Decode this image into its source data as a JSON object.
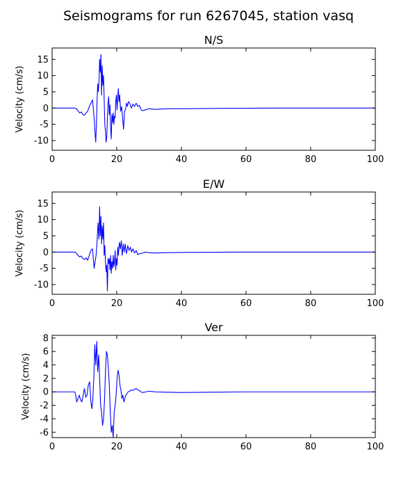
{
  "figure": {
    "suptitle": "Seismograms for run 6267045, station vasq"
  },
  "chart_data": [
    {
      "type": "line",
      "title": "N/S",
      "xlabel": "",
      "ylabel": "Velocity (cm/s)",
      "xlim": [
        0,
        100
      ],
      "ylim": [
        -13,
        18.5
      ],
      "xticks": [
        0,
        20,
        40,
        60,
        80,
        100
      ],
      "yticks": [
        -10,
        -5,
        0,
        5,
        10,
        15
      ],
      "grid": false,
      "color": "#0000ff",
      "series": [
        {
          "x": [
            0,
            7,
            7.5,
            8,
            8.5,
            9,
            9.5,
            10,
            10.5,
            11,
            11.5,
            12,
            12.5,
            13,
            13.3,
            13.5,
            13.7,
            13.9,
            14.1,
            14.3,
            14.5,
            14.7,
            14.9,
            15.1,
            15.3,
            15.5,
            15.7,
            15.9,
            16.1,
            16.3,
            16.5,
            16.7,
            16.9,
            17.1,
            17.3,
            17.5,
            17.7,
            17.9,
            18.1,
            18.3,
            18.5,
            18.7,
            18.9,
            19.1,
            19.3,
            19.5,
            19.7,
            19.9,
            20.1,
            20.3,
            20.5,
            20.7,
            20.9,
            21.2,
            21.5,
            21.8,
            22.1,
            22.4,
            22.7,
            23,
            23.3,
            23.6,
            24,
            24.5,
            25,
            25.5,
            26,
            26.5,
            27,
            27.5,
            28,
            29,
            30,
            32,
            34,
            36,
            40,
            50,
            60,
            70,
            80,
            90,
            100
          ],
          "y": [
            0,
            0,
            -0.2,
            -0.8,
            -1.5,
            -1.2,
            -2.0,
            -2.2,
            -1.5,
            -1.0,
            0.5,
            1.5,
            2.5,
            -3.0,
            -8.0,
            -10.5,
            -5.0,
            2.0,
            7.5,
            5.0,
            8.0,
            15.0,
            11.0,
            16.5,
            4.0,
            13.0,
            7.0,
            10.0,
            3.0,
            -5.0,
            -7.0,
            -10.5,
            -9.0,
            -3.5,
            1.5,
            3.5,
            -2.0,
            1.0,
            -6.0,
            -9.5,
            -2.0,
            -4.5,
            -1.5,
            -5.0,
            -2.5,
            -3.0,
            2.0,
            4.0,
            -0.5,
            3.5,
            6.0,
            2.0,
            4.0,
            -1.0,
            0.5,
            -3.0,
            -6.5,
            -1.0,
            -0.5,
            1.5,
            0.5,
            2.0,
            1.5,
            0.0,
            1.2,
            0.5,
            1.5,
            0.5,
            0.8,
            -0.5,
            -0.8,
            -0.5,
            -0.2,
            -0.4,
            -0.3,
            -0.2,
            -0.2,
            -0.1,
            -0.05,
            0,
            0,
            0,
            0
          ]
        }
      ]
    },
    {
      "type": "line",
      "title": "E/W",
      "xlabel": "",
      "ylabel": "Velocity (cm/s)",
      "xlim": [
        0,
        100
      ],
      "ylim": [
        -13,
        18.5
      ],
      "xticks": [
        0,
        20,
        40,
        60,
        80,
        100
      ],
      "yticks": [
        -10,
        -5,
        0,
        5,
        10,
        15
      ],
      "grid": false,
      "color": "#0000ff",
      "series": [
        {
          "x": [
            0,
            7,
            7.5,
            8,
            8.5,
            9,
            9.5,
            10,
            10.5,
            11,
            11.5,
            12,
            12.5,
            13,
            13.3,
            13.6,
            13.9,
            14.2,
            14.5,
            14.7,
            14.9,
            15.1,
            15.3,
            15.5,
            15.7,
            15.9,
            16.1,
            16.3,
            16.5,
            16.7,
            16.9,
            17.1,
            17.3,
            17.5,
            17.7,
            17.9,
            18.1,
            18.3,
            18.5,
            18.7,
            18.9,
            19.1,
            19.3,
            19.5,
            19.7,
            19.9,
            20.1,
            20.3,
            20.5,
            20.8,
            21.1,
            21.4,
            21.7,
            22,
            22.3,
            22.6,
            23,
            23.4,
            23.8,
            24.2,
            24.6,
            25,
            25.5,
            26,
            26.5,
            27,
            28,
            29,
            30,
            32,
            34,
            40,
            50,
            60,
            70,
            80,
            90,
            100
          ],
          "y": [
            0,
            0,
            -0.3,
            -1.0,
            -1.5,
            -1.2,
            -2.0,
            -2.3,
            -1.8,
            -2.5,
            -1.0,
            0.5,
            1.0,
            -5.0,
            -3.0,
            -1.0,
            3.0,
            9.0,
            4.0,
            14.0,
            5.0,
            11.0,
            2.5,
            8.0,
            4.0,
            9.0,
            -1.0,
            2.0,
            -3.0,
            -6.0,
            -4.0,
            -12.0,
            -2.0,
            -3.5,
            -2.0,
            -5.5,
            -1.0,
            -6.5,
            -3.0,
            -5.0,
            -1.0,
            -4.5,
            -3.0,
            0.5,
            -5.5,
            -2.0,
            -4.0,
            1.5,
            -1.0,
            3.0,
            1.0,
            3.5,
            -1.0,
            2.5,
            0.0,
            2.5,
            -0.5,
            2.0,
            0.5,
            1.5,
            0.0,
            1.0,
            -0.3,
            0.5,
            -0.8,
            -0.5,
            -0.3,
            0.0,
            -0.2,
            -0.3,
            -0.2,
            -0.1,
            -0.05,
            0,
            0,
            0,
            0,
            0
          ]
        }
      ]
    },
    {
      "type": "line",
      "title": "Ver",
      "xlabel": "",
      "ylabel": "Velocity (cm/s)",
      "xlim": [
        0,
        100
      ],
      "ylim": [
        -6.8,
        8.4
      ],
      "xticks": [
        0,
        20,
        40,
        60,
        80,
        100
      ],
      "yticks": [
        -6,
        -4,
        -2,
        0,
        2,
        4,
        6,
        8
      ],
      "grid": false,
      "color": "#0000ff",
      "series": [
        {
          "x": [
            0,
            7,
            7.3,
            7.6,
            8,
            8.4,
            8.8,
            9.2,
            9.6,
            10,
            10.4,
            10.8,
            11.2,
            11.6,
            12,
            12.3,
            12.6,
            12.9,
            13.2,
            13.5,
            13.8,
            14.1,
            14.4,
            14.7,
            15,
            15.3,
            15.6,
            15.9,
            16.2,
            16.5,
            16.8,
            17.1,
            17.4,
            17.7,
            18,
            18.3,
            18.6,
            18.9,
            19.2,
            19.5,
            19.8,
            20.1,
            20.4,
            20.7,
            21,
            21.3,
            21.6,
            21.9,
            22.2,
            22.5,
            22.8,
            23.1,
            23.5,
            24,
            24.5,
            25,
            25.5,
            26,
            26.5,
            27,
            27.5,
            28,
            29,
            30,
            32,
            35,
            40,
            50,
            60,
            70,
            80,
            90,
            100
          ],
          "y": [
            0,
            0,
            -0.5,
            -1.5,
            -1.0,
            -0.5,
            -1.2,
            -1.5,
            -0.5,
            0.5,
            -0.8,
            -0.5,
            1.0,
            1.5,
            -1.5,
            -2.5,
            -1.0,
            2.0,
            7.0,
            4.0,
            7.5,
            3.0,
            5.5,
            2.0,
            -2.0,
            -3.0,
            -5.0,
            -4.0,
            -1.5,
            3.0,
            6.0,
            5.5,
            3.5,
            1.0,
            -3.0,
            -6.0,
            -5.0,
            -6.8,
            -3.0,
            -2.0,
            -0.5,
            2.0,
            3.2,
            2.5,
            1.0,
            0.2,
            -1.0,
            -0.5,
            -1.5,
            -1.0,
            -0.5,
            -0.3,
            0.0,
            0.1,
            0.3,
            0.2,
            0.4,
            0.5,
            0.3,
            0.2,
            0.0,
            -0.1,
            0.0,
            0.1,
            0.0,
            -0.05,
            -0.1,
            -0.05,
            0,
            0,
            0,
            0,
            0
          ]
        }
      ]
    }
  ]
}
